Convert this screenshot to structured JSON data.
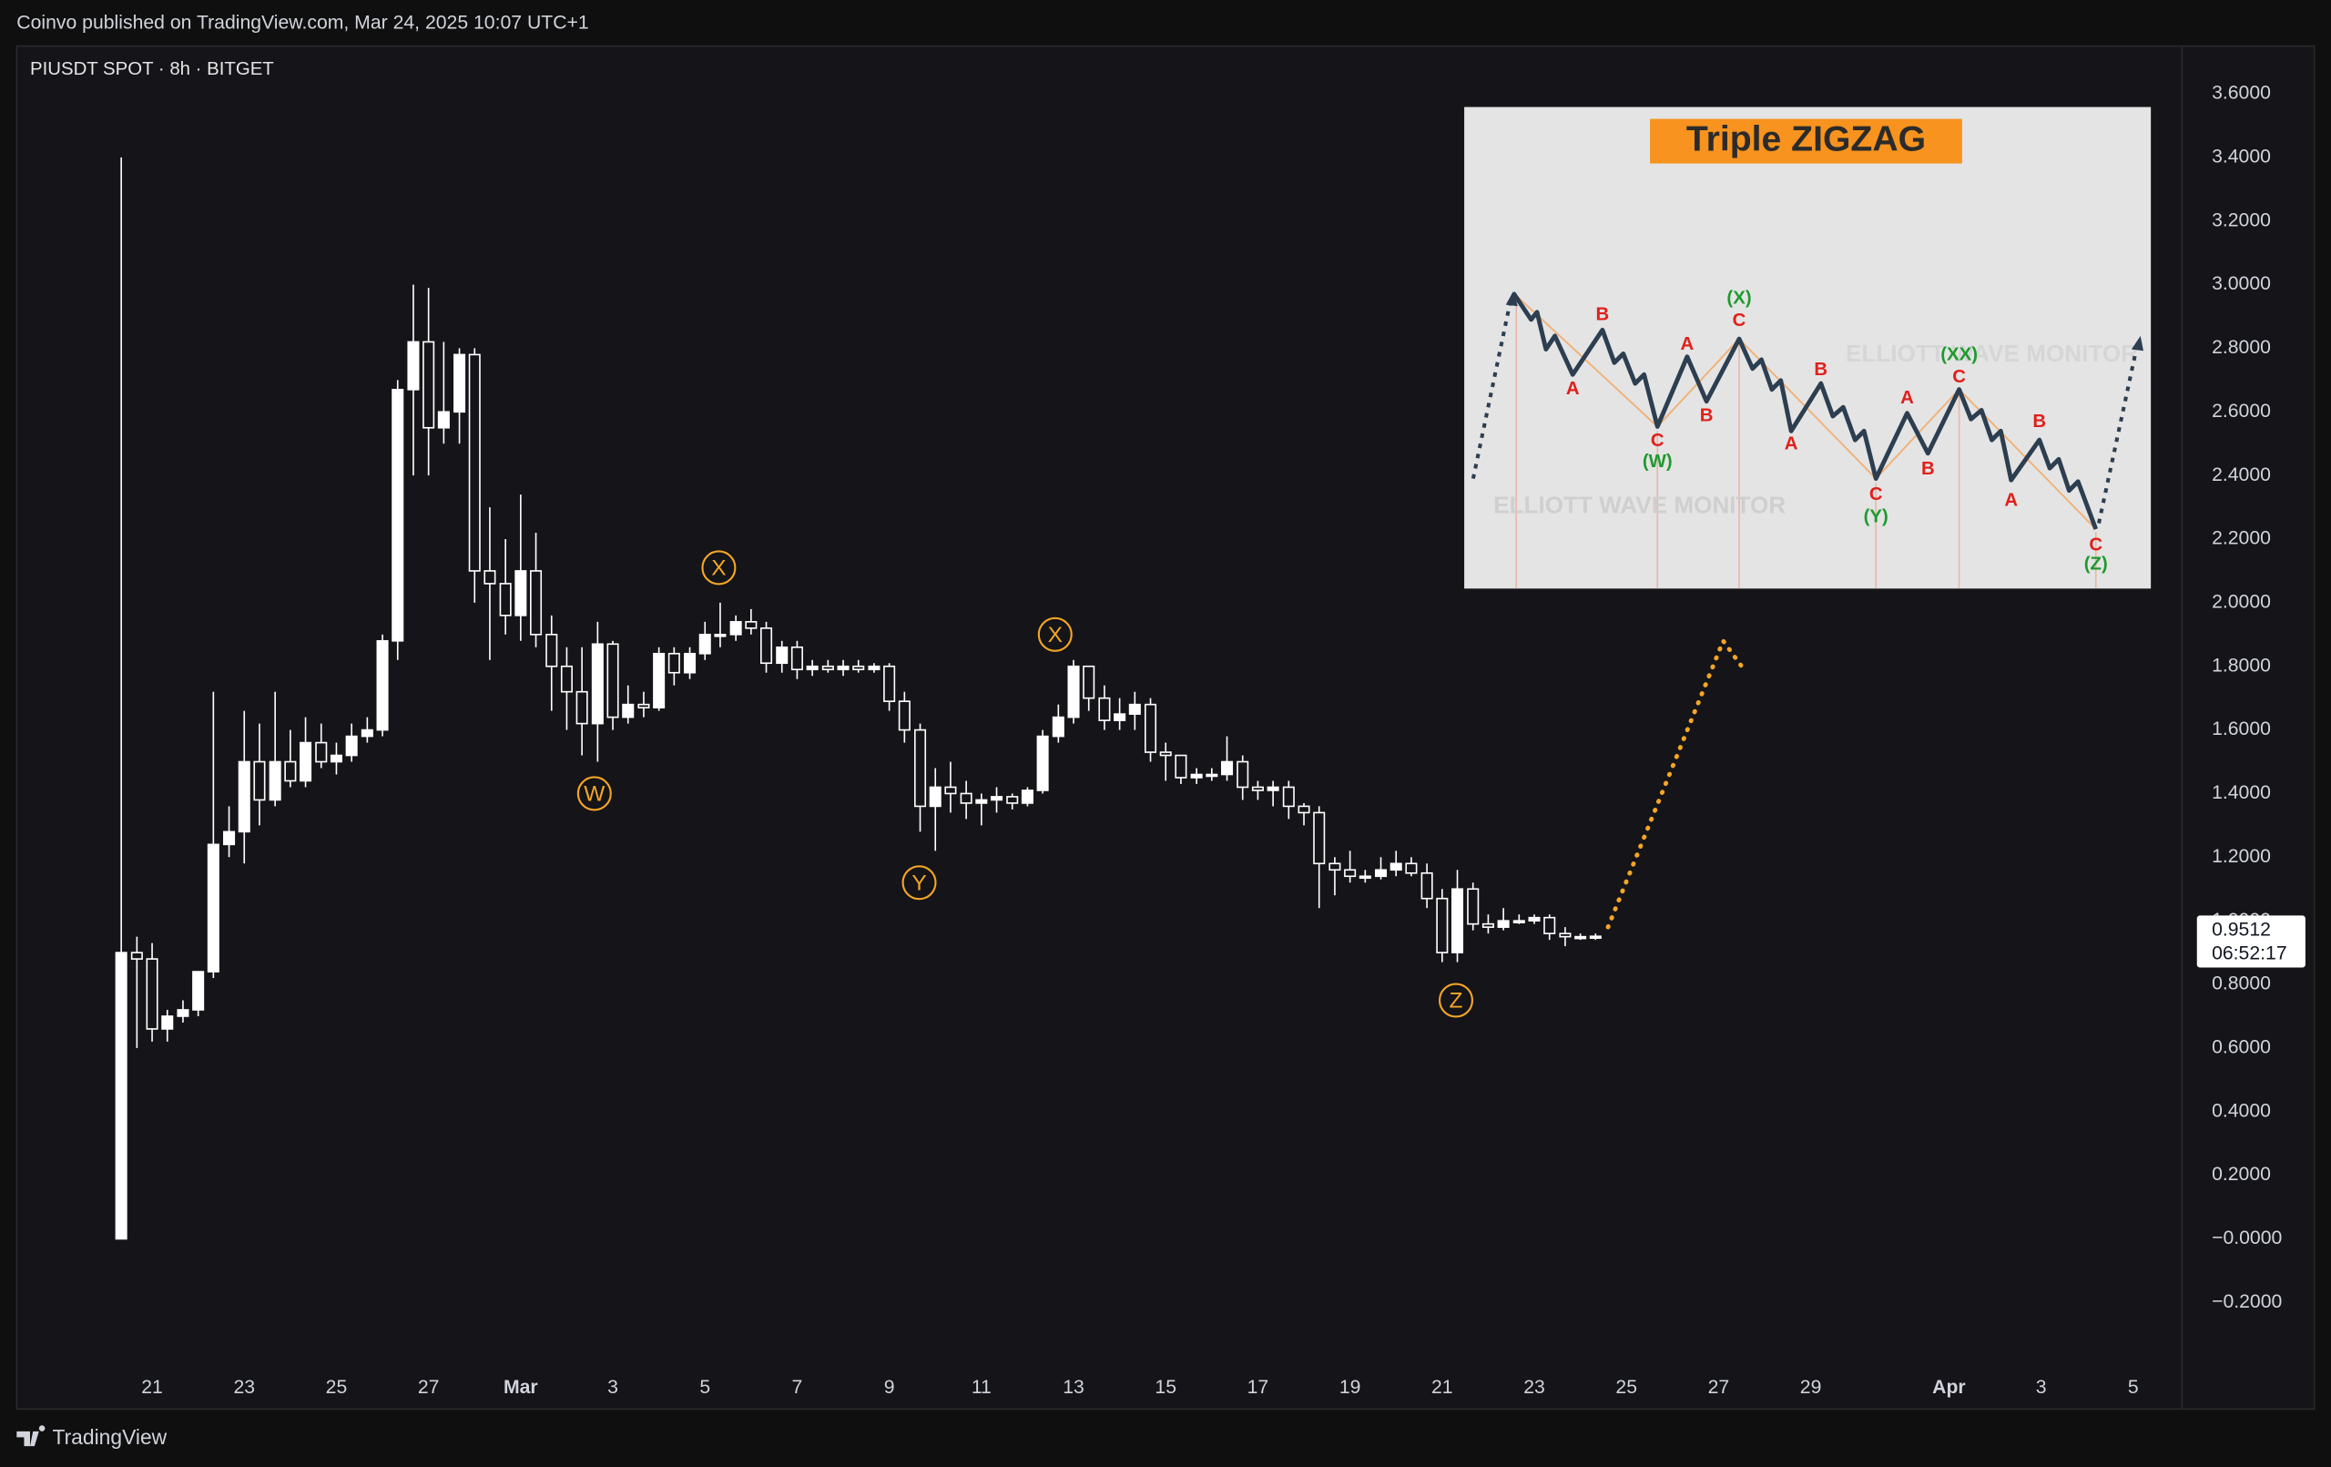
{
  "header": {
    "published": "Coinvo published on TradingView.com, Mar 24, 2025 10:07 UTC+1"
  },
  "footer": {
    "brand": "TradingView"
  },
  "chart_data": {
    "type": "candlestick",
    "title": "PIUSDT SPOT · 8h · BITGET",
    "up_color": "#ffffff",
    "down_color": "#ffffff",
    "grid": false,
    "xlim": [
      49.06,
      96.06
    ],
    "xticks": [
      {
        "value": 52,
        "label": "21"
      },
      {
        "value": 54,
        "label": "23"
      },
      {
        "value": 56,
        "label": "25"
      },
      {
        "value": 58,
        "label": "27"
      },
      {
        "value": 60,
        "label": "Mar"
      },
      {
        "value": 62,
        "label": "3"
      },
      {
        "value": 64,
        "label": "5"
      },
      {
        "value": 66,
        "label": "7"
      },
      {
        "value": 68,
        "label": "9"
      },
      {
        "value": 70,
        "label": "11"
      },
      {
        "value": 72,
        "label": "13"
      },
      {
        "value": 74,
        "label": "15"
      },
      {
        "value": 76,
        "label": "17"
      },
      {
        "value": 78,
        "label": "19"
      },
      {
        "value": 80,
        "label": "21"
      },
      {
        "value": 82,
        "label": "23"
      },
      {
        "value": 84,
        "label": "25"
      },
      {
        "value": 86,
        "label": "27"
      },
      {
        "value": 88,
        "label": "29"
      },
      {
        "value": 91,
        "label": "Apr"
      },
      {
        "value": 93,
        "label": "3"
      },
      {
        "value": 95,
        "label": "5"
      }
    ],
    "ylim": [
      -0.535,
      3.75
    ],
    "yticks": [
      {
        "value": 3.6,
        "label": "3.6000"
      },
      {
        "value": 3.4,
        "label": "3.4000"
      },
      {
        "value": 3.2,
        "label": "3.2000"
      },
      {
        "value": 3.0,
        "label": "3.0000"
      },
      {
        "value": 2.8,
        "label": "2.8000"
      },
      {
        "value": 2.6,
        "label": "2.6000"
      },
      {
        "value": 2.4,
        "label": "2.4000"
      },
      {
        "value": 2.2,
        "label": "2.2000"
      },
      {
        "value": 2.0,
        "label": "2.0000"
      },
      {
        "value": 1.8,
        "label": "1.8000"
      },
      {
        "value": 1.6,
        "label": "1.6000"
      },
      {
        "value": 1.4,
        "label": "1.4000"
      },
      {
        "value": 1.2,
        "label": "1.2000"
      },
      {
        "value": 1.0,
        "label": "1.0000"
      },
      {
        "value": 0.8,
        "label": "0.8000"
      },
      {
        "value": 0.6,
        "label": "0.6000"
      },
      {
        "value": 0.4,
        "label": "0.4000"
      },
      {
        "value": 0.2,
        "label": "0.2000"
      },
      {
        "value": 0,
        "label": "−0.0000"
      },
      {
        "value": -0.2,
        "label": "−0.2000"
      }
    ],
    "x": [
      51.33,
      51.67,
      52,
      52.33,
      52.67,
      53,
      53.33,
      53.67,
      54,
      54.33,
      54.67,
      55,
      55.33,
      55.67,
      56,
      56.33,
      56.67,
      57,
      57.33,
      57.67,
      58,
      58.33,
      58.67,
      59,
      59.33,
      59.67,
      60,
      60.33,
      60.67,
      61,
      61.33,
      61.67,
      62,
      62.33,
      62.67,
      63,
      63.33,
      63.67,
      64,
      64.33,
      64.67,
      65,
      65.33,
      65.67,
      66,
      66.33,
      66.67,
      67,
      67.33,
      67.67,
      68,
      68.33,
      68.67,
      69,
      69.33,
      69.67,
      70,
      70.33,
      70.67,
      71,
      71.33,
      71.67,
      72,
      72.33,
      72.67,
      73,
      73.33,
      73.67,
      74,
      74.33,
      74.67,
      75,
      75.33,
      75.67,
      76,
      76.33,
      76.67,
      77,
      77.33,
      77.67,
      78,
      78.33,
      78.67,
      79,
      79.33,
      79.67,
      80,
      80.33,
      80.67,
      81,
      81.33,
      81.67,
      82,
      82.33,
      82.67,
      83,
      83.33
    ],
    "candles": [
      [
        0,
        3.4,
        0,
        0.9
      ],
      [
        0.9,
        0.95,
        0.6,
        0.88
      ],
      [
        0.88,
        0.93,
        0.62,
        0.66
      ],
      [
        0.66,
        0.72,
        0.62,
        0.7
      ],
      [
        0.7,
        0.75,
        0.68,
        0.72
      ],
      [
        0.72,
        0.8,
        0.7,
        0.84
      ],
      [
        0.84,
        1.72,
        0.82,
        1.24
      ],
      [
        1.24,
        1.36,
        1.2,
        1.28
      ],
      [
        1.28,
        1.66,
        1.18,
        1.5
      ],
      [
        1.5,
        1.62,
        1.3,
        1.38
      ],
      [
        1.38,
        1.72,
        1.36,
        1.5
      ],
      [
        1.5,
        1.6,
        1.42,
        1.44
      ],
      [
        1.44,
        1.64,
        1.42,
        1.56
      ],
      [
        1.56,
        1.62,
        1.48,
        1.5
      ],
      [
        1.5,
        1.56,
        1.46,
        1.52
      ],
      [
        1.52,
        1.62,
        1.5,
        1.58
      ],
      [
        1.58,
        1.64,
        1.56,
        1.6
      ],
      [
        1.6,
        1.9,
        1.58,
        1.88
      ],
      [
        1.88,
        2.7,
        1.82,
        2.67
      ],
      [
        2.67,
        3.0,
        2.4,
        2.82
      ],
      [
        2.82,
        2.99,
        2.4,
        2.55
      ],
      [
        2.55,
        2.82,
        2.5,
        2.6
      ],
      [
        2.6,
        2.8,
        2.5,
        2.78
      ],
      [
        2.78,
        2.8,
        2.0,
        2.1
      ],
      [
        2.1,
        2.3,
        1.82,
        2.06
      ],
      [
        2.06,
        2.2,
        1.9,
        1.96
      ],
      [
        1.96,
        2.34,
        1.88,
        2.1
      ],
      [
        2.1,
        2.22,
        1.86,
        1.9
      ],
      [
        1.9,
        1.96,
        1.66,
        1.8
      ],
      [
        1.8,
        1.86,
        1.6,
        1.72
      ],
      [
        1.72,
        1.86,
        1.52,
        1.62
      ],
      [
        1.62,
        1.94,
        1.5,
        1.87
      ],
      [
        1.87,
        1.88,
        1.6,
        1.64
      ],
      [
        1.64,
        1.74,
        1.62,
        1.68
      ],
      [
        1.68,
        1.72,
        1.64,
        1.67
      ],
      [
        1.67,
        1.86,
        1.66,
        1.84
      ],
      [
        1.84,
        1.86,
        1.74,
        1.78
      ],
      [
        1.78,
        1.86,
        1.76,
        1.84
      ],
      [
        1.84,
        1.94,
        1.82,
        1.9
      ],
      [
        1.9,
        2.0,
        1.86,
        1.9
      ],
      [
        1.9,
        1.96,
        1.88,
        1.94
      ],
      [
        1.94,
        1.98,
        1.9,
        1.92
      ],
      [
        1.92,
        1.94,
        1.78,
        1.81
      ],
      [
        1.81,
        1.88,
        1.78,
        1.86
      ],
      [
        1.86,
        1.88,
        1.76,
        1.79
      ],
      [
        1.79,
        1.82,
        1.77,
        1.8
      ],
      [
        1.8,
        1.82,
        1.78,
        1.79
      ],
      [
        1.79,
        1.82,
        1.77,
        1.8
      ],
      [
        1.8,
        1.82,
        1.78,
        1.79
      ],
      [
        1.79,
        1.81,
        1.78,
        1.8
      ],
      [
        1.8,
        1.81,
        1.66,
        1.69
      ],
      [
        1.69,
        1.72,
        1.56,
        1.6
      ],
      [
        1.6,
        1.62,
        1.28,
        1.36
      ],
      [
        1.36,
        1.48,
        1.22,
        1.42
      ],
      [
        1.42,
        1.5,
        1.34,
        1.4
      ],
      [
        1.4,
        1.44,
        1.32,
        1.37
      ],
      [
        1.37,
        1.4,
        1.3,
        1.38
      ],
      [
        1.38,
        1.42,
        1.34,
        1.39
      ],
      [
        1.39,
        1.4,
        1.35,
        1.37
      ],
      [
        1.37,
        1.42,
        1.36,
        1.41
      ],
      [
        1.41,
        1.6,
        1.4,
        1.58
      ],
      [
        1.58,
        1.68,
        1.56,
        1.64
      ],
      [
        1.64,
        1.82,
        1.62,
        1.8
      ],
      [
        1.8,
        1.8,
        1.66,
        1.7
      ],
      [
        1.7,
        1.74,
        1.6,
        1.63
      ],
      [
        1.63,
        1.7,
        1.6,
        1.65
      ],
      [
        1.65,
        1.72,
        1.6,
        1.68
      ],
      [
        1.68,
        1.7,
        1.5,
        1.53
      ],
      [
        1.53,
        1.56,
        1.44,
        1.52
      ],
      [
        1.52,
        1.52,
        1.43,
        1.45
      ],
      [
        1.45,
        1.48,
        1.43,
        1.46
      ],
      [
        1.46,
        1.48,
        1.44,
        1.46
      ],
      [
        1.46,
        1.58,
        1.44,
        1.5
      ],
      [
        1.5,
        1.52,
        1.38,
        1.42
      ],
      [
        1.42,
        1.44,
        1.38,
        1.41
      ],
      [
        1.41,
        1.44,
        1.36,
        1.42
      ],
      [
        1.42,
        1.44,
        1.32,
        1.36
      ],
      [
        1.36,
        1.37,
        1.3,
        1.34
      ],
      [
        1.34,
        1.36,
        1.04,
        1.18
      ],
      [
        1.18,
        1.2,
        1.08,
        1.16
      ],
      [
        1.16,
        1.22,
        1.12,
        1.14
      ],
      [
        1.14,
        1.16,
        1.12,
        1.14
      ],
      [
        1.14,
        1.2,
        1.13,
        1.16
      ],
      [
        1.16,
        1.22,
        1.14,
        1.18
      ],
      [
        1.18,
        1.2,
        1.14,
        1.15
      ],
      [
        1.15,
        1.18,
        1.04,
        1.07
      ],
      [
        1.07,
        1.1,
        0.87,
        0.9
      ],
      [
        0.9,
        1.16,
        0.87,
        1.1
      ],
      [
        1.1,
        1.12,
        0.97,
        0.99
      ],
      [
        0.99,
        1.02,
        0.96,
        0.98
      ],
      [
        0.98,
        1.04,
        0.97,
        1.0
      ],
      [
        1.0,
        1.02,
        0.99,
        1.0
      ],
      [
        1.0,
        1.02,
        0.99,
        1.01
      ],
      [
        1.01,
        1.02,
        0.94,
        0.96
      ],
      [
        0.96,
        0.98,
        0.92,
        0.95
      ],
      [
        0.95,
        0.96,
        0.94,
        0.95
      ],
      [
        0.95,
        0.96,
        0.94,
        0.9512
      ]
    ],
    "annotations": [
      {
        "text": "W",
        "x": 61.6,
        "y": 1.4
      },
      {
        "text": "X",
        "x": 64.3,
        "y": 2.11
      },
      {
        "text": "Y",
        "x": 68.65,
        "y": 1.12
      },
      {
        "text": "X",
        "x": 71.6,
        "y": 1.9
      },
      {
        "text": "Z",
        "x": 80.3,
        "y": 0.75
      }
    ],
    "annotation_color": "#f5a623",
    "projection": {
      "color": "#f5a623",
      "x": [
        83.6,
        86.1,
        86.5
      ],
      "values": [
        0.98,
        1.88,
        1.8
      ]
    },
    "last_price": 0.9512,
    "countdown": "06:52:17"
  },
  "inset": {
    "title": "Triple ZIGZAG",
    "watermark": "ELLIOTT WAVE MONITOR",
    "labels": [
      {
        "text": "A",
        "color": "#e0201b"
      },
      {
        "text": "B",
        "color": "#e0201b"
      },
      {
        "text": "C",
        "color": "#e0201b"
      },
      {
        "text": "(W)",
        "color": "#1f9a2f"
      },
      {
        "text": "A",
        "color": "#e0201b"
      },
      {
        "text": "B",
        "color": "#e0201b"
      },
      {
        "text": "C",
        "color": "#e0201b"
      },
      {
        "text": "(X)",
        "color": "#1f9a2f"
      },
      {
        "text": "A",
        "color": "#e0201b"
      },
      {
        "text": "B",
        "color": "#e0201b"
      },
      {
        "text": "C",
        "color": "#e0201b"
      },
      {
        "text": "(Y)",
        "color": "#1f9a2f"
      },
      {
        "text": "A",
        "color": "#e0201b"
      },
      {
        "text": "B",
        "color": "#e0201b"
      },
      {
        "text": "C",
        "color": "#e0201b"
      },
      {
        "text": "(XX)",
        "color": "#1f9a2f"
      },
      {
        "text": "A",
        "color": "#e0201b"
      },
      {
        "text": "B",
        "color": "#e0201b"
      },
      {
        "text": "C",
        "color": "#e0201b"
      },
      {
        "text": "(Z)",
        "color": "#1f9a2f"
      }
    ]
  }
}
